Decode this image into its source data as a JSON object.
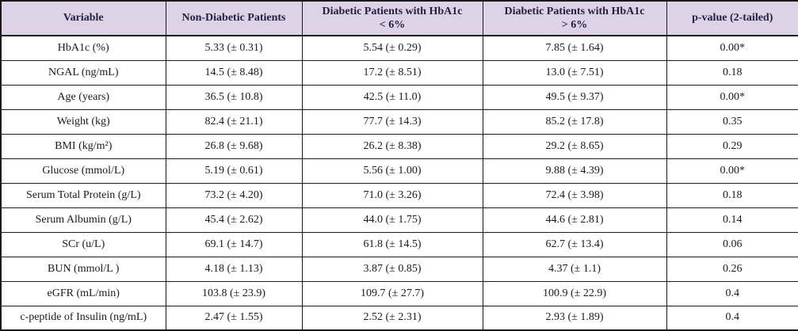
{
  "table": {
    "columns": [
      {
        "lines": [
          "Variable",
          ""
        ]
      },
      {
        "lines": [
          "Non-Diabetic Patients",
          ""
        ]
      },
      {
        "lines": [
          "Diabetic Patients with HbA1c",
          "< 6%"
        ]
      },
      {
        "lines": [
          "Diabetic Patients with HbA1c",
          "> 6%"
        ]
      },
      {
        "lines": [
          "p-value (2-tailed)",
          ""
        ]
      }
    ],
    "rows": [
      [
        "HbA1c (%)",
        "5.33 (± 0.31)",
        "5.54 (± 0.29)",
        "7.85 (± 1.64)",
        "0.00*"
      ],
      [
        "NGAL (ng/mL)",
        "14.5 (± 8.48)",
        "17.2 (± 8.51)",
        "13.0 (± 7.51)",
        "0.18"
      ],
      [
        "Age (years)",
        "36.5 (± 10.8)",
        "42.5 (± 11.0)",
        "49.5 (± 9.37)",
        "0.00*"
      ],
      [
        "Weight (kg)",
        "82.4 (± 21.1)",
        "77.7 (± 14.3)",
        "85.2 (± 17.8)",
        "0.35"
      ],
      [
        "BMI (kg/m²)",
        "26.8 (± 9.68)",
        "26.2 (± 8.38)",
        "29.2 (± 8.65)",
        "0.29"
      ],
      [
        "Glucose (mmol/L)",
        "5.19 (± 0.61)",
        "5.56 (± 1.00)",
        "9.88 (± 4.39)",
        "0.00*"
      ],
      [
        "Serum Total Protein (g/L)",
        "73.2 (± 4.20)",
        "71.0 (± 3.26)",
        "72.4 (± 3.98)",
        "0.18"
      ],
      [
        "Serum Albumin (g/L)",
        "45.4 (± 2.62)",
        "44.0 (± 1.75)",
        "44.6 (± 2.81)",
        "0.14"
      ],
      [
        "SCr (u/L)",
        "69.1 (± 14.7)",
        "61.8 (± 14.5)",
        "62.7 (± 13.4)",
        "0.06"
      ],
      [
        "BUN (mmol/L )",
        "4.18 (± 1.13)",
        "3.87 (± 0.85)",
        "4.37 (± 1.1)",
        "0.26"
      ],
      [
        "eGFR (mL/min)",
        "103.8 (± 23.9)",
        "109.7 (± 27.7)",
        "100.9 (± 22.9)",
        "0.4"
      ],
      [
        "c-peptide of Insulin (ng/mL)",
        "2.47 (± 1.55)",
        "2.52 (± 2.31)",
        "2.93 (± 1.89)",
        "0.4"
      ]
    ],
    "colors": {
      "header_bg": "#ded2e7",
      "border": "#1a1a1a",
      "header_text": "#1f2240",
      "body_text": "#1b1b1b"
    }
  }
}
